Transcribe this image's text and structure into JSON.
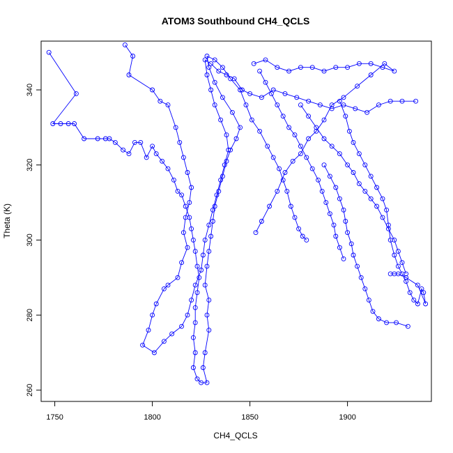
{
  "chart_data": {
    "type": "scatter",
    "title": "ATOM3 Southbound CH4_QCLS",
    "xlabel": "CH4_QCLS",
    "ylabel": "Theta (K)",
    "xlim": [
      1743,
      1943
    ],
    "ylim": [
      257,
      353
    ],
    "x_ticks": [
      1750,
      1800,
      1850,
      1900
    ],
    "y_ticks": [
      260,
      280,
      300,
      320,
      340
    ],
    "grid": false,
    "legend": "none",
    "series": [
      {
        "style": "line-with-open-circle-markers",
        "color": "#0000ff",
        "points": [
          [
            1747,
            350
          ],
          [
            1761,
            339
          ],
          [
            1749,
            331
          ],
          [
            1753,
            331
          ],
          [
            1757,
            331
          ],
          [
            1760,
            331
          ],
          [
            1765,
            327
          ],
          [
            1772,
            327
          ],
          [
            1776,
            327
          ],
          [
            1778,
            327
          ],
          [
            1781,
            326
          ],
          [
            1785,
            324
          ],
          [
            1788,
            323
          ],
          [
            1791,
            326
          ],
          [
            1794,
            326
          ],
          [
            1797,
            322
          ],
          [
            1800,
            325
          ],
          [
            1802,
            323
          ],
          [
            1805,
            321
          ],
          [
            1808,
            319
          ],
          [
            1811,
            316
          ],
          [
            1813,
            313
          ],
          [
            1815,
            312
          ],
          [
            1817,
            309
          ],
          [
            1819,
            306
          ],
          [
            1820,
            303
          ],
          [
            1821,
            300
          ],
          [
            1822,
            297
          ],
          [
            1823,
            293
          ],
          [
            1824,
            290
          ],
          [
            1823,
            286
          ],
          [
            1822,
            282
          ],
          [
            1822,
            278
          ],
          [
            1821,
            274
          ],
          [
            1822,
            270
          ],
          [
            1821,
            266
          ],
          [
            1823,
            263
          ],
          [
            1825,
            262
          ],
          [
            1828,
            262
          ],
          [
            1826,
            266
          ],
          [
            1827,
            270
          ],
          [
            1829,
            276
          ],
          [
            1828,
            280
          ],
          [
            1829,
            284
          ],
          [
            1827,
            288
          ],
          [
            1828,
            293
          ],
          [
            1829,
            297
          ],
          [
            1830,
            301
          ],
          [
            1831,
            305
          ],
          [
            1832,
            309
          ],
          [
            1834,
            313
          ],
          [
            1836,
            317
          ],
          [
            1838,
            321
          ],
          [
            1840,
            324
          ],
          [
            1843,
            327
          ],
          [
            1845,
            330
          ],
          [
            1841,
            334
          ],
          [
            1836,
            338
          ],
          [
            1832,
            342
          ],
          [
            1829,
            346
          ],
          [
            1828,
            349
          ],
          [
            1832,
            348
          ],
          [
            1836,
            346
          ],
          [
            1840,
            343
          ],
          [
            1845,
            340
          ],
          [
            1848,
            336
          ],
          [
            1851,
            332
          ],
          [
            1855,
            329
          ],
          [
            1859,
            325
          ],
          [
            1862,
            322
          ],
          [
            1865,
            319
          ],
          [
            1867,
            316
          ],
          [
            1869,
            313
          ],
          [
            1871,
            309
          ],
          [
            1873,
            306
          ],
          [
            1875,
            303
          ],
          [
            1877,
            301
          ],
          [
            1879,
            300
          ]
        ]
      },
      {
        "style": "line-with-open-circle-markers",
        "color": "#0000ff",
        "points": [
          [
            1786,
            352
          ],
          [
            1790,
            349
          ],
          [
            1788,
            344
          ],
          [
            1800,
            340
          ],
          [
            1804,
            337
          ],
          [
            1808,
            336
          ],
          [
            1812,
            330
          ],
          [
            1814,
            326
          ],
          [
            1816,
            322
          ],
          [
            1818,
            318
          ],
          [
            1820,
            314
          ],
          [
            1819,
            310
          ],
          [
            1817,
            306
          ],
          [
            1816,
            302
          ],
          [
            1818,
            298
          ],
          [
            1815,
            294
          ],
          [
            1813,
            290
          ],
          [
            1808,
            288
          ],
          [
            1806,
            287
          ],
          [
            1802,
            283
          ],
          [
            1800,
            280
          ],
          [
            1798,
            276
          ],
          [
            1795,
            272
          ],
          [
            1801,
            270
          ],
          [
            1806,
            273
          ],
          [
            1810,
            275
          ],
          [
            1815,
            277
          ],
          [
            1818,
            280
          ],
          [
            1820,
            284
          ],
          [
            1822,
            288
          ],
          [
            1825,
            292
          ],
          [
            1826,
            296
          ],
          [
            1827,
            300
          ],
          [
            1829,
            304
          ],
          [
            1831,
            308
          ],
          [
            1833,
            312
          ],
          [
            1835,
            316
          ],
          [
            1837,
            320
          ],
          [
            1839,
            324
          ],
          [
            1838,
            328
          ],
          [
            1835,
            332
          ],
          [
            1832,
            336
          ],
          [
            1830,
            340
          ],
          [
            1828,
            344
          ],
          [
            1827,
            348
          ],
          [
            1830,
            347
          ],
          [
            1834,
            345
          ],
          [
            1838,
            344
          ],
          [
            1842,
            343
          ],
          [
            1846,
            340
          ],
          [
            1850,
            339
          ],
          [
            1856,
            338
          ],
          [
            1862,
            340
          ],
          [
            1868,
            339
          ],
          [
            1874,
            338
          ],
          [
            1880,
            337
          ],
          [
            1886,
            336
          ],
          [
            1892,
            335
          ],
          [
            1898,
            336
          ],
          [
            1904,
            335
          ],
          [
            1910,
            334
          ],
          [
            1916,
            336
          ],
          [
            1922,
            337
          ],
          [
            1928,
            337
          ],
          [
            1935,
            337
          ]
        ]
      },
      {
        "style": "line-with-open-circle-markers",
        "color": "#0000ff",
        "points": [
          [
            1852,
            347
          ],
          [
            1858,
            348
          ],
          [
            1864,
            346
          ],
          [
            1870,
            345
          ],
          [
            1876,
            346
          ],
          [
            1882,
            346
          ],
          [
            1888,
            345
          ],
          [
            1894,
            346
          ],
          [
            1900,
            346
          ],
          [
            1906,
            347
          ],
          [
            1912,
            347
          ],
          [
            1918,
            346
          ],
          [
            1924,
            345
          ],
          [
            1919,
            347
          ],
          [
            1912,
            344
          ],
          [
            1905,
            341
          ],
          [
            1898,
            338
          ],
          [
            1892,
            336
          ],
          [
            1888,
            332
          ],
          [
            1884,
            329
          ],
          [
            1880,
            327
          ],
          [
            1876,
            323
          ],
          [
            1872,
            321
          ],
          [
            1868,
            318
          ],
          [
            1864,
            313
          ],
          [
            1860,
            309
          ],
          [
            1856,
            305
          ],
          [
            1853,
            302
          ]
        ]
      },
      {
        "style": "line-with-open-circle-markers",
        "color": "#0000ff",
        "points": [
          [
            1896,
            337
          ],
          [
            1899,
            333
          ],
          [
            1901,
            329
          ],
          [
            1903,
            326
          ],
          [
            1906,
            323
          ],
          [
            1909,
            320
          ],
          [
            1912,
            317
          ],
          [
            1915,
            314
          ],
          [
            1918,
            311
          ],
          [
            1920,
            308
          ],
          [
            1921,
            304
          ],
          [
            1922,
            300
          ],
          [
            1924,
            296
          ],
          [
            1926,
            293
          ],
          [
            1928,
            291
          ],
          [
            1930,
            289
          ],
          [
            1932,
            286
          ],
          [
            1934,
            284
          ],
          [
            1936,
            283
          ],
          [
            1938,
            287
          ],
          [
            1939,
            286
          ],
          [
            1940,
            283
          ],
          [
            1936,
            288
          ],
          [
            1930,
            290
          ],
          [
            1926,
            291
          ],
          [
            1924,
            291
          ],
          [
            1922,
            291
          ]
        ]
      },
      {
        "style": "line-with-open-circle-markers",
        "color": "#0000ff",
        "points": [
          [
            1888,
            320
          ],
          [
            1891,
            317
          ],
          [
            1894,
            314
          ],
          [
            1896,
            311
          ],
          [
            1898,
            308
          ],
          [
            1899,
            305
          ],
          [
            1900,
            302
          ],
          [
            1902,
            299
          ],
          [
            1903,
            296
          ],
          [
            1905,
            293
          ],
          [
            1907,
            290
          ],
          [
            1909,
            287
          ],
          [
            1911,
            284
          ],
          [
            1913,
            281
          ],
          [
            1916,
            279
          ],
          [
            1920,
            278
          ],
          [
            1925,
            278
          ],
          [
            1931,
            277
          ]
        ]
      },
      {
        "style": "line-with-open-circle-markers",
        "color": "#0000ff",
        "points": [
          [
            1855,
            345
          ],
          [
            1858,
            342
          ],
          [
            1861,
            339
          ],
          [
            1864,
            336
          ],
          [
            1867,
            333
          ],
          [
            1870,
            330
          ],
          [
            1873,
            328
          ],
          [
            1876,
            325
          ],
          [
            1879,
            322
          ],
          [
            1882,
            319
          ],
          [
            1885,
            316
          ],
          [
            1887,
            313
          ],
          [
            1889,
            310
          ],
          [
            1891,
            307
          ],
          [
            1893,
            304
          ],
          [
            1894,
            301
          ],
          [
            1896,
            298
          ],
          [
            1898,
            295
          ]
        ]
      },
      {
        "style": "line-with-open-circle-markers",
        "color": "#0000ff",
        "points": [
          [
            1876,
            336
          ],
          [
            1880,
            333
          ],
          [
            1884,
            330
          ],
          [
            1888,
            327
          ],
          [
            1892,
            325
          ],
          [
            1896,
            323
          ],
          [
            1900,
            320
          ],
          [
            1903,
            318
          ],
          [
            1906,
            315
          ],
          [
            1909,
            313
          ],
          [
            1912,
            311
          ],
          [
            1915,
            309
          ],
          [
            1918,
            306
          ],
          [
            1921,
            303
          ],
          [
            1924,
            300
          ],
          [
            1926,
            297
          ],
          [
            1928,
            294
          ],
          [
            1930,
            291
          ]
        ]
      }
    ]
  }
}
